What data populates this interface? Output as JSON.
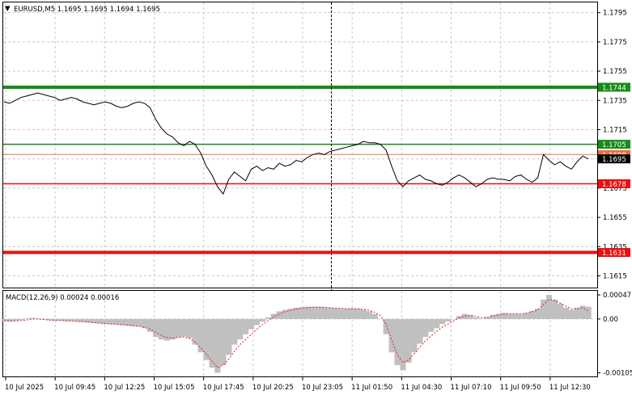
{
  "header": {
    "symbol_line": "EURUSD,M5  1.1695 1.1695 1.1694 1.1695"
  },
  "macd_label": "MACD(12,26,9) 0.00024 0.00016",
  "chart_data": {
    "type": "line",
    "title": "EURUSD,M5",
    "price_axis": {
      "min": 1.1607,
      "max": 1.1802,
      "ticks": [
        "1.1795",
        "1.1775",
        "1.1755",
        "1.1735",
        "1.1715",
        "1.1695",
        "1.1675",
        "1.1655",
        "1.1635",
        "1.1615"
      ]
    },
    "time_labels": [
      "10 Jul 2025",
      "10 Jul 09:45",
      "10 Jul 12:25",
      "10 Jul 15:05",
      "10 Jul 17:45",
      "10 Jul 20:25",
      "10 Jul 23:05",
      "11 Jul 01:50",
      "11 Jul 04:30",
      "11 Jul 07:10",
      "11 Jul 09:50",
      "11 Jul 12:30"
    ],
    "levels": [
      {
        "label": "1.1744",
        "value": 1.1744,
        "color": "#1a8a1a",
        "width": 4
      },
      {
        "label": "1.1705",
        "value": 1.1705,
        "color": "#1a8a1a",
        "width": 1.5
      },
      {
        "label": "1.1698",
        "value": 1.1698,
        "color": "#e8704a",
        "width": 1
      },
      {
        "label": "1.1678",
        "value": 1.1678,
        "color": "#e81010",
        "width": 1.5
      },
      {
        "label": "1.1631",
        "value": 1.1631,
        "color": "#e81010",
        "width": 4
      }
    ],
    "current_price": "1.1695",
    "price_series": [
      1.1734,
      1.1733,
      1.1735,
      1.1737,
      1.1738,
      1.1739,
      1.174,
      1.1739,
      1.1738,
      1.1737,
      1.1735,
      1.1736,
      1.1737,
      1.1736,
      1.1734,
      1.1733,
      1.1732,
      1.1733,
      1.1734,
      1.1733,
      1.1731,
      1.173,
      1.1731,
      1.1733,
      1.1734,
      1.1733,
      1.173,
      1.1722,
      1.1716,
      1.1712,
      1.171,
      1.1706,
      1.1704,
      1.1707,
      1.1705,
      1.1699,
      1.169,
      1.1684,
      1.1676,
      1.1671,
      1.1681,
      1.1686,
      1.1683,
      1.168,
      1.1688,
      1.169,
      1.1687,
      1.1689,
      1.1688,
      1.1692,
      1.169,
      1.1691,
      1.1694,
      1.1693,
      1.1696,
      1.1698,
      1.1699,
      1.1698,
      1.17,
      1.1701,
      1.1702,
      1.1703,
      1.1704,
      1.1705,
      1.1707,
      1.1706,
      1.1706,
      1.1705,
      1.1701,
      1.169,
      1.168,
      1.1676,
      1.168,
      1.1682,
      1.1684,
      1.1681,
      1.168,
      1.1678,
      1.1677,
      1.1679,
      1.1682,
      1.1684,
      1.1682,
      1.1679,
      1.1676,
      1.1678,
      1.1681,
      1.1682,
      1.1681,
      1.1681,
      1.168,
      1.1683,
      1.1684,
      1.1681,
      1.1679,
      1.1682,
      1.1698,
      1.1694,
      1.1691,
      1.1693,
      1.169,
      1.1688,
      1.1693,
      1.1697,
      1.1695
    ],
    "macd_axis": {
      "ticks": [
        "0.00047",
        "0.00",
        "-0.00105"
      ]
    },
    "macd_histogram": [
      -4e-05,
      -5e-05,
      -4e-05,
      -2e-05,
      1e-05,
      2e-05,
      1e-05,
      -1e-05,
      -2e-05,
      -3e-05,
      -3e-05,
      -4e-05,
      -4e-05,
      -5e-05,
      -6e-05,
      -7e-05,
      -8e-05,
      -9e-05,
      -0.0001,
      -0.0001,
      -0.00011,
      -0.00012,
      -0.00013,
      -0.00014,
      -0.00015,
      -0.00018,
      -0.00025,
      -0.00035,
      -0.0004,
      -0.00042,
      -0.0004,
      -0.00036,
      -0.00034,
      -0.00037,
      -0.0005,
      -0.00065,
      -0.0008,
      -0.00095,
      -0.00105,
      -0.0009,
      -0.0007,
      -0.0005,
      -0.0004,
      -0.0003,
      -0.0002,
      -0.00012,
      -5e-05,
      3e-05,
      0.0001,
      0.00015,
      0.00018,
      0.0002,
      0.00022,
      0.00023,
      0.00024,
      0.00024,
      0.00024,
      0.00023,
      0.00022,
      0.00021,
      0.0002,
      0.0002,
      0.00021,
      0.0002,
      0.00018,
      0.00015,
      0.0001,
      0.0,
      -0.0003,
      -0.00065,
      -0.0009,
      -0.001,
      -0.00085,
      -0.00065,
      -0.00048,
      -0.00035,
      -0.00025,
      -0.00018,
      -0.0001,
      -5e-05,
      0.0,
      6e-05,
      0.0001,
      8e-05,
      3e-05,
      1e-05,
      4e-05,
      8e-05,
      0.0001,
      0.00012,
      0.0001,
      0.0001,
      9e-05,
      0.00012,
      0.00016,
      0.0002,
      0.00038,
      0.00047,
      0.00038,
      0.0003,
      0.00022,
      0.00018,
      0.00022,
      0.00026,
      0.00024
    ],
    "macd_signal": [
      -3e-05,
      -4e-05,
      -4e-05,
      -3e-05,
      -2e-05,
      0.0,
      0.0,
      -1e-05,
      -2e-05,
      -3e-05,
      -3e-05,
      -4e-05,
      -4e-05,
      -5e-05,
      -5e-05,
      -6e-05,
      -7e-05,
      -8e-05,
      -9e-05,
      -0.0001,
      -0.0001,
      -0.00011,
      -0.00012,
      -0.00013,
      -0.00014,
      -0.00016,
      -0.0002,
      -0.00026,
      -0.00032,
      -0.00036,
      -0.00037,
      -0.00036,
      -0.00035,
      -0.00038,
      -0.00045,
      -0.00056,
      -0.00068,
      -0.00082,
      -0.00095,
      -0.0009,
      -0.00078,
      -0.00063,
      -0.0005,
      -0.0004,
      -0.0003,
      -0.0002,
      -0.00011,
      -3e-05,
      4e-05,
      0.0001,
      0.00014,
      0.00017,
      0.00019,
      0.00021,
      0.00022,
      0.00023,
      0.00023,
      0.00023,
      0.00022,
      0.00021,
      0.00021,
      0.0002,
      0.0002,
      0.0002,
      0.00019,
      0.00017,
      0.00013,
      7e-05,
      -0.0001,
      -0.0004,
      -0.0007,
      -0.00085,
      -0.0008,
      -0.00068,
      -0.00055,
      -0.00043,
      -0.00033,
      -0.00024,
      -0.00016,
      -0.0001,
      -4e-05,
      2e-05,
      6e-05,
      7e-05,
      5e-05,
      3e-05,
      3e-05,
      6e-05,
      8e-05,
      0.0001,
      0.0001,
      0.0001,
      0.0001,
      0.00011,
      0.00014,
      0.00018,
      0.00028,
      0.00038,
      0.00036,
      0.00031,
      0.00025,
      0.0002,
      0.0002,
      0.00022,
      0.00016
    ],
    "macd_range": [
      -0.00112,
      0.00055
    ],
    "grid": true
  }
}
